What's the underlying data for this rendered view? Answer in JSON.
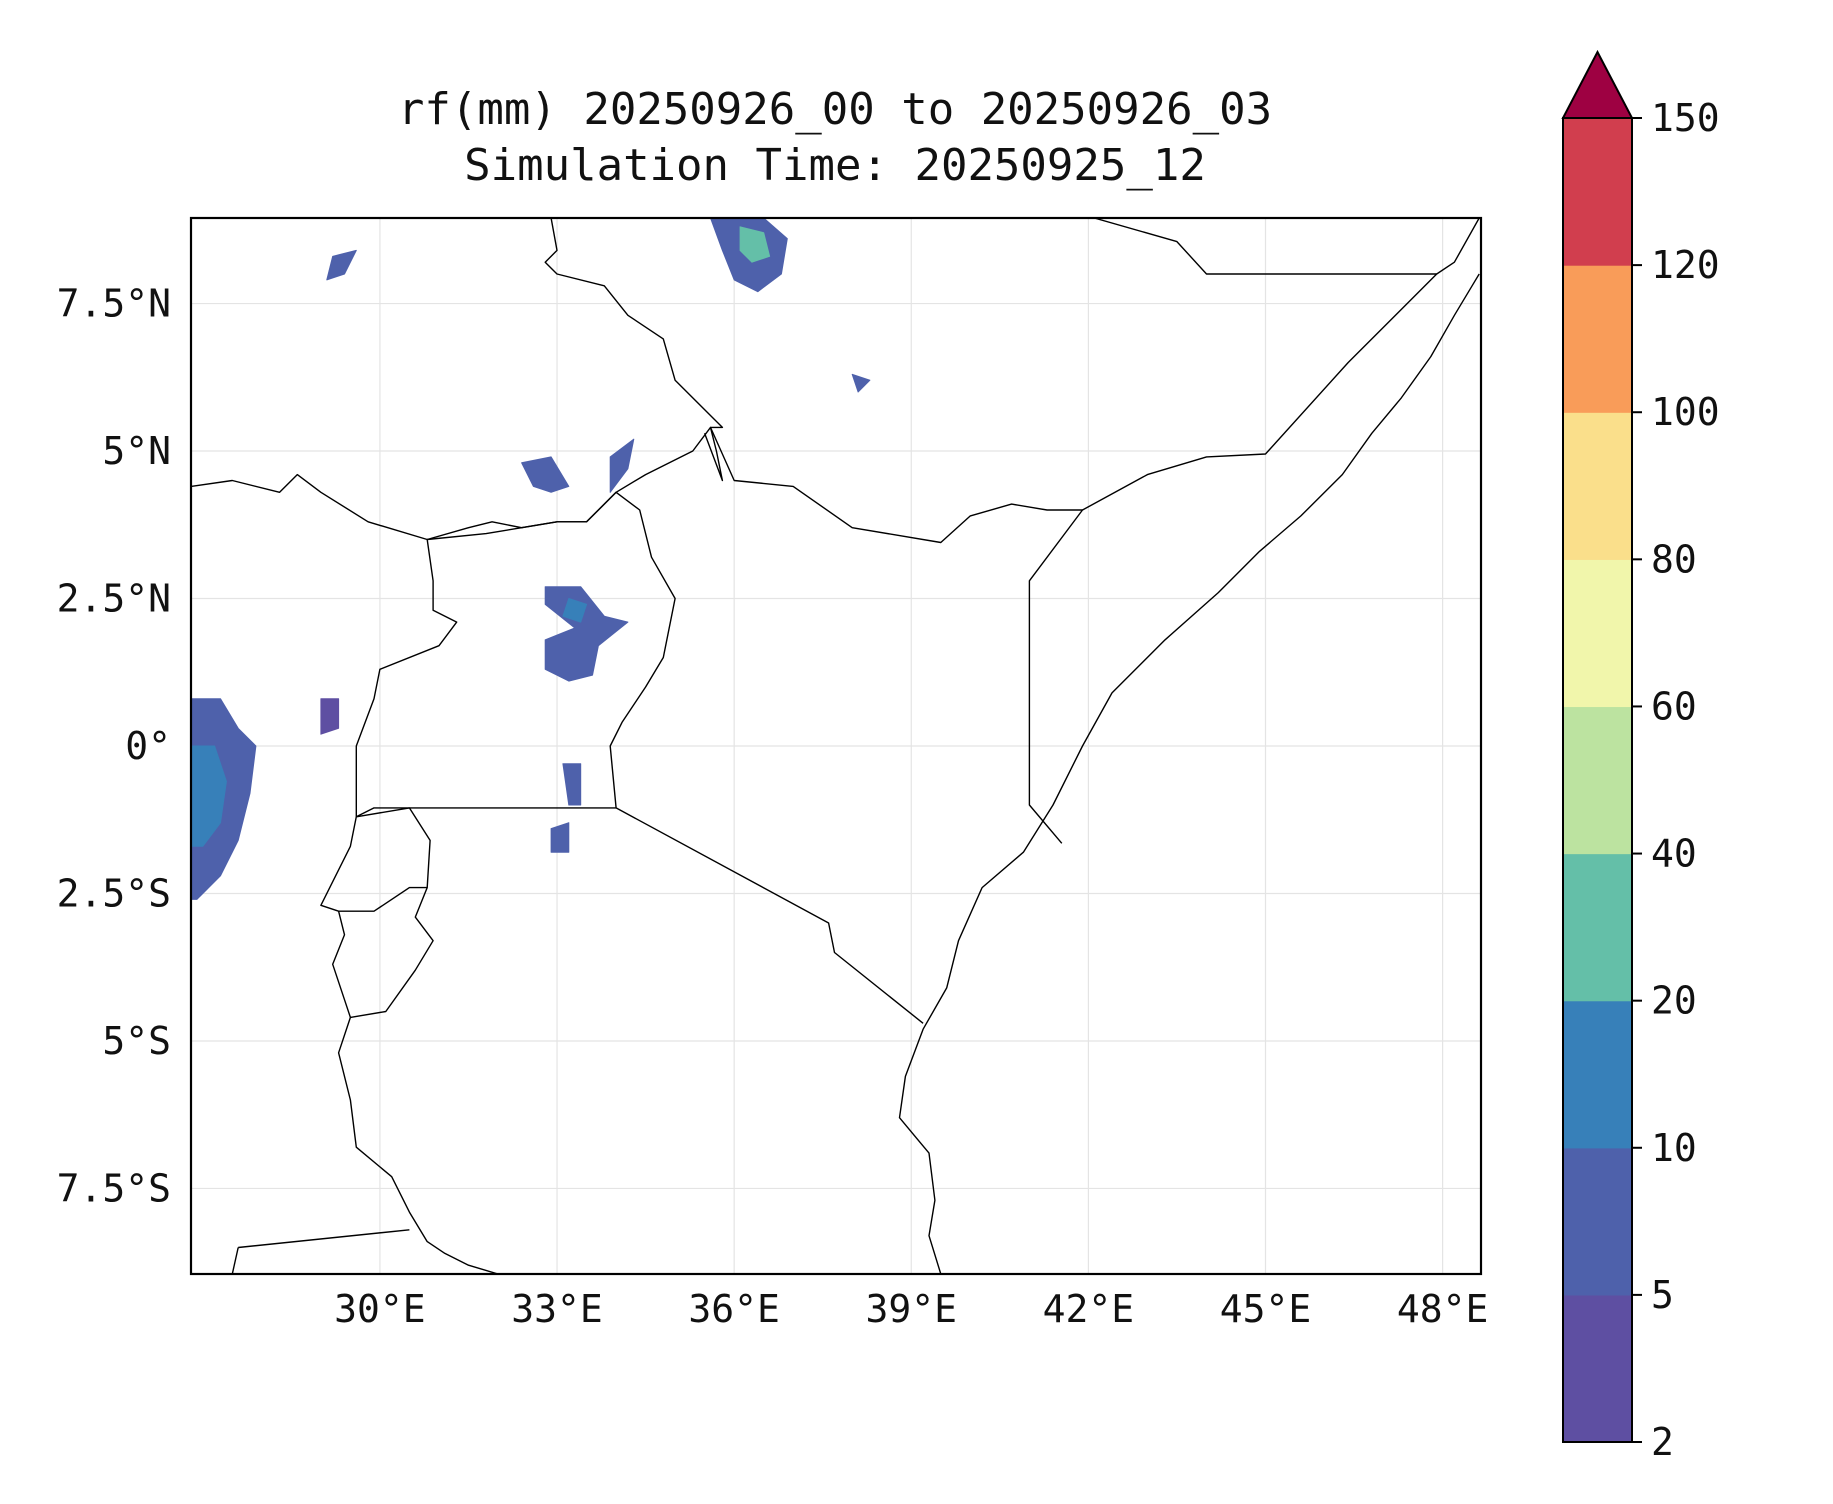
{
  "title": {
    "line1": "rf(mm) 20250926_00 to 20250926_03",
    "line2": "Simulation Time: 20250925_12"
  },
  "map": {
    "lon_range": [
      26.8,
      48.65
    ],
    "lat_range": [
      -8.95,
      8.95
    ],
    "x_ticks": [
      {
        "value": 30,
        "label": "30°E"
      },
      {
        "value": 33,
        "label": "33°E"
      },
      {
        "value": 36,
        "label": "36°E"
      },
      {
        "value": 39,
        "label": "39°E"
      },
      {
        "value": 42,
        "label": "42°E"
      },
      {
        "value": 45,
        "label": "45°E"
      },
      {
        "value": 48,
        "label": "48°E"
      }
    ],
    "y_ticks": [
      {
        "value": 7.5,
        "label": "7.5°N"
      },
      {
        "value": 5,
        "label": "5°N"
      },
      {
        "value": 2.5,
        "label": "2.5°N"
      },
      {
        "value": 0,
        "label": "0°"
      },
      {
        "value": -2.5,
        "label": "2.5°S"
      },
      {
        "value": -5,
        "label": "5°S"
      },
      {
        "value": -7.5,
        "label": "7.5°S"
      }
    ],
    "features": [
      {
        "name": "coastline",
        "points": [
          [
            48.62,
            8.0
          ],
          [
            48.5,
            7.8
          ],
          [
            48.2,
            7.3
          ],
          [
            47.8,
            6.6
          ],
          [
            47.3,
            5.9
          ],
          [
            46.8,
            5.3
          ],
          [
            46.3,
            4.6
          ],
          [
            45.6,
            3.9
          ],
          [
            44.9,
            3.3
          ],
          [
            44.2,
            2.6
          ],
          [
            43.3,
            1.8
          ],
          [
            42.4,
            0.9
          ],
          [
            41.9,
            0.0
          ],
          [
            41.4,
            -1.0
          ],
          [
            40.9,
            -1.8
          ],
          [
            40.2,
            -2.4
          ],
          [
            39.8,
            -3.3
          ],
          [
            39.6,
            -4.1
          ],
          [
            39.2,
            -4.8
          ],
          [
            38.9,
            -5.6
          ],
          [
            38.8,
            -6.3
          ],
          [
            39.3,
            -6.9
          ],
          [
            39.4,
            -7.7
          ],
          [
            39.3,
            -8.3
          ],
          [
            39.5,
            -8.95
          ]
        ]
      },
      {
        "name": "border-somalia-ethiopia",
        "points": [
          [
            42.1,
            8.95
          ],
          [
            43.5,
            8.55
          ],
          [
            44.0,
            8.0
          ],
          [
            47.9,
            8.0
          ],
          [
            46.4,
            6.5
          ],
          [
            45.0,
            4.95
          ],
          [
            44.0,
            4.9
          ],
          [
            43.0,
            4.6
          ],
          [
            41.9,
            4.0
          ],
          [
            41.0,
            2.8
          ],
          [
            41.0,
            -1.0
          ],
          [
            41.55,
            -1.65
          ]
        ]
      },
      {
        "name": "border-ethiopia-kenya",
        "points": [
          [
            35.6,
            5.4
          ],
          [
            36.0,
            4.5
          ],
          [
            37.0,
            4.4
          ],
          [
            38.0,
            3.7
          ],
          [
            39.5,
            3.45
          ],
          [
            40.0,
            3.9
          ],
          [
            40.7,
            4.1
          ],
          [
            41.3,
            4.0
          ],
          [
            41.9,
            4.0
          ]
        ]
      },
      {
        "name": "border-kenya-somalia-ext",
        "points": [
          [
            48.62,
            8.95
          ],
          [
            48.2,
            8.2
          ],
          [
            47.9,
            8.0
          ]
        ]
      },
      {
        "name": "border-kenya-tanzania",
        "points": [
          [
            34.0,
            -1.05
          ],
          [
            37.6,
            -3.0
          ],
          [
            37.7,
            -3.5
          ],
          [
            39.2,
            -4.7
          ]
        ]
      },
      {
        "name": "border-uganda-kenya",
        "points": [
          [
            34.0,
            -1.05
          ],
          [
            33.9,
            0.0
          ],
          [
            34.1,
            0.4
          ],
          [
            34.5,
            1.0
          ],
          [
            34.8,
            1.5
          ],
          [
            35.0,
            2.5
          ],
          [
            34.6,
            3.2
          ],
          [
            34.4,
            4.0
          ],
          [
            34.0,
            4.3
          ],
          [
            33.5,
            3.8
          ],
          [
            33.0,
            3.8
          ],
          [
            32.4,
            3.7
          ],
          [
            31.8,
            3.6
          ],
          [
            30.8,
            3.5
          ],
          [
            30.9,
            2.8
          ],
          [
            30.9,
            2.3
          ],
          [
            31.3,
            2.1
          ],
          [
            31.0,
            1.7
          ],
          [
            30.0,
            1.3
          ],
          [
            29.9,
            0.8
          ],
          [
            29.6,
            0.0
          ],
          [
            29.6,
            -1.2
          ],
          [
            29.9,
            -1.05
          ],
          [
            34.0,
            -1.05
          ]
        ]
      },
      {
        "name": "border-south-sudan",
        "points": [
          [
            26.8,
            4.4
          ],
          [
            27.5,
            4.5
          ],
          [
            28.3,
            4.3
          ],
          [
            28.6,
            4.6
          ],
          [
            29.0,
            4.3
          ],
          [
            29.8,
            3.8
          ],
          [
            30.8,
            3.5
          ],
          [
            31.5,
            3.7
          ],
          [
            31.9,
            3.8
          ],
          [
            32.4,
            3.7
          ],
          [
            33.0,
            3.8
          ],
          [
            33.5,
            3.8
          ],
          [
            34.0,
            4.3
          ],
          [
            34.5,
            4.6
          ],
          [
            35.3,
            5.0
          ],
          [
            35.6,
            5.4
          ],
          [
            35.7,
            5.0
          ],
          [
            35.8,
            4.5
          ],
          [
            35.5,
            5.3
          ]
        ]
      },
      {
        "name": "border-sudan-ethiopia",
        "points": [
          [
            32.9,
            8.95
          ],
          [
            33.0,
            8.4
          ],
          [
            32.8,
            8.2
          ],
          [
            33.0,
            8.0
          ],
          [
            33.8,
            7.8
          ],
          [
            34.2,
            7.3
          ],
          [
            34.8,
            6.9
          ],
          [
            35.0,
            6.2
          ],
          [
            35.4,
            5.8
          ],
          [
            35.8,
            5.4
          ],
          [
            35.6,
            5.4
          ]
        ]
      },
      {
        "name": "border-rwanda-burundi",
        "points": [
          [
            29.6,
            -1.2
          ],
          [
            30.5,
            -1.05
          ],
          [
            30.85,
            -1.6
          ],
          [
            30.8,
            -2.4
          ],
          [
            30.5,
            -2.4
          ],
          [
            29.9,
            -2.8
          ],
          [
            29.3,
            -2.8
          ],
          [
            29.0,
            -2.7
          ],
          [
            29.2,
            -2.3
          ],
          [
            29.5,
            -1.7
          ],
          [
            29.6,
            -1.2
          ]
        ]
      },
      {
        "name": "border-tanzania-west",
        "points": [
          [
            29.3,
            -2.8
          ],
          [
            29.4,
            -3.2
          ],
          [
            29.2,
            -3.7
          ],
          [
            29.4,
            -4.3
          ],
          [
            29.5,
            -4.6
          ],
          [
            30.1,
            -4.5
          ],
          [
            30.6,
            -3.8
          ],
          [
            30.9,
            -3.3
          ],
          [
            30.6,
            -2.9
          ],
          [
            30.8,
            -2.4
          ]
        ]
      },
      {
        "name": "border-tanzania-south",
        "points": [
          [
            29.5,
            -4.6
          ],
          [
            29.3,
            -5.2
          ],
          [
            29.5,
            -6.0
          ],
          [
            29.6,
            -6.8
          ],
          [
            30.2,
            -7.3
          ],
          [
            30.5,
            -7.9
          ],
          [
            30.8,
            -8.4
          ],
          [
            31.1,
            -8.6
          ],
          [
            31.5,
            -8.8
          ],
          [
            32.0,
            -8.95
          ]
        ]
      },
      {
        "name": "border-zambia-tanzania",
        "points": [
          [
            27.6,
            -8.5
          ],
          [
            30.5,
            -8.2
          ]
        ]
      },
      {
        "name": "border-drc-zambia",
        "points": [
          [
            27.5,
            -8.95
          ],
          [
            27.6,
            -8.5
          ]
        ]
      }
    ],
    "rain_patches": [
      {
        "name": "rain-patch-drc-west",
        "value_class": "5-10",
        "ring": [
          [
            26.8,
            0.8
          ],
          [
            27.3,
            0.8
          ],
          [
            27.6,
            0.3
          ],
          [
            27.9,
            0.0
          ],
          [
            27.8,
            -0.8
          ],
          [
            27.6,
            -1.6
          ],
          [
            27.3,
            -2.2
          ],
          [
            26.9,
            -2.6
          ],
          [
            26.8,
            -2.6
          ]
        ]
      },
      {
        "name": "rain-patch-drc-core",
        "value_class": "10-20",
        "ring": [
          [
            26.8,
            0.0
          ],
          [
            27.2,
            0.0
          ],
          [
            27.4,
            -0.6
          ],
          [
            27.3,
            -1.3
          ],
          [
            27.0,
            -1.7
          ],
          [
            26.8,
            -1.7
          ]
        ]
      },
      {
        "name": "rain-patch-victoria-north",
        "value_class": "5-10",
        "ring": [
          [
            32.8,
            2.7
          ],
          [
            33.4,
            2.7
          ],
          [
            33.8,
            2.2
          ],
          [
            34.2,
            2.1
          ],
          [
            33.7,
            1.7
          ],
          [
            33.6,
            1.2
          ],
          [
            33.2,
            1.1
          ],
          [
            32.8,
            1.3
          ],
          [
            32.8,
            1.8
          ],
          [
            33.3,
            2.0
          ],
          [
            32.8,
            2.4
          ]
        ]
      },
      {
        "name": "rain-patch-victoria-core",
        "value_class": "10-20",
        "ring": [
          [
            33.2,
            2.5
          ],
          [
            33.5,
            2.4
          ],
          [
            33.4,
            2.1
          ],
          [
            33.1,
            2.2
          ]
        ]
      },
      {
        "name": "rain-patch-ethiopia-north",
        "value_class": "5-10",
        "ring": [
          [
            35.6,
            8.95
          ],
          [
            36.5,
            8.95
          ],
          [
            36.9,
            8.6
          ],
          [
            36.8,
            8.0
          ],
          [
            36.4,
            7.7
          ],
          [
            36.0,
            7.9
          ],
          [
            35.8,
            8.4
          ]
        ]
      },
      {
        "name": "rain-patch-ethiopia-core",
        "value_class": "20-40",
        "ring": [
          [
            36.1,
            8.8
          ],
          [
            36.5,
            8.7
          ],
          [
            36.6,
            8.3
          ],
          [
            36.3,
            8.2
          ],
          [
            36.1,
            8.4
          ]
        ]
      },
      {
        "name": "rain-patch-sudan-border",
        "value_class": "5-10",
        "ring": [
          [
            32.4,
            4.8
          ],
          [
            32.9,
            4.9
          ],
          [
            33.2,
            4.4
          ],
          [
            32.9,
            4.3
          ],
          [
            32.6,
            4.4
          ]
        ]
      },
      {
        "name": "rain-patch-turkana",
        "value_class": "5-10",
        "ring": [
          [
            33.9,
            4.9
          ],
          [
            34.3,
            5.2
          ],
          [
            34.2,
            4.7
          ],
          [
            33.9,
            4.3
          ]
        ]
      },
      {
        "name": "rain-patch-lake-victoria",
        "value_class": "5-10",
        "ring": [
          [
            33.1,
            -0.3
          ],
          [
            33.4,
            -0.3
          ],
          [
            33.4,
            -1.0
          ],
          [
            33.2,
            -1.0
          ]
        ]
      },
      {
        "name": "rain-patch-tanzania-north",
        "value_class": "5-10",
        "ring": [
          [
            32.9,
            -1.4
          ],
          [
            33.2,
            -1.3
          ],
          [
            33.2,
            -1.8
          ],
          [
            32.9,
            -1.8
          ]
        ]
      },
      {
        "name": "rain-patch-south-sudan-west",
        "value_class": "5-10",
        "ring": [
          [
            29.2,
            8.3
          ],
          [
            29.6,
            8.4
          ],
          [
            29.4,
            8.0
          ],
          [
            29.1,
            7.9
          ]
        ]
      },
      {
        "name": "rain-patch-drc-east",
        "value_class": "2-5",
        "ring": [
          [
            29.0,
            0.8
          ],
          [
            29.3,
            0.8
          ],
          [
            29.3,
            0.3
          ],
          [
            29.0,
            0.2
          ]
        ]
      },
      {
        "name": "rain-patch-ethiopia-east",
        "value_class": "5-10",
        "ring": [
          [
            38.0,
            6.3
          ],
          [
            38.3,
            6.2
          ],
          [
            38.1,
            6.0
          ]
        ]
      }
    ]
  },
  "colorbar": {
    "levels": [
      2,
      5,
      10,
      20,
      40,
      60,
      80,
      100,
      120,
      150
    ],
    "labels": [
      "2",
      "5",
      "10",
      "20",
      "40",
      "60",
      "80",
      "100",
      "120",
      "150"
    ],
    "colors": [
      "#5e4fa2",
      "#4e61ab",
      "#3780b9",
      "#64bfa8",
      "#bce3a0",
      "#f1f6ab",
      "#fadf8b",
      "#f99c59",
      "#d13e4e"
    ],
    "extend_color": "#9e0142"
  }
}
